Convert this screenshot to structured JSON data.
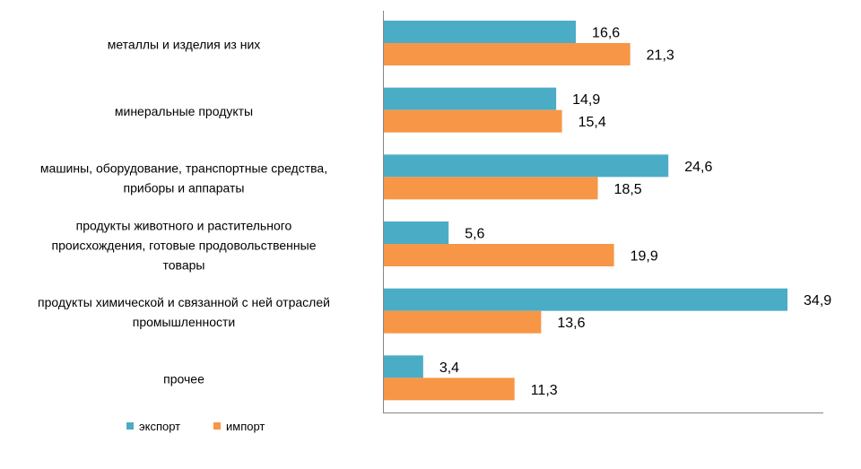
{
  "chart_data": {
    "type": "bar",
    "orientation": "horizontal",
    "categories": [
      [
        "металлы и изделия из них"
      ],
      [
        "минеральные продукты"
      ],
      [
        "машины, оборудование, транспортные средства,",
        "приборы и аппараты"
      ],
      [
        "продукты животного и растительного",
        "происхождения, готовые продовольственные",
        "товары"
      ],
      [
        "продукты химической и связанной с ней отраслей",
        "промышленности"
      ],
      [
        "прочее"
      ]
    ],
    "series": [
      {
        "name": "экспорт",
        "color": "#4BACC6",
        "values": [
          16.6,
          14.9,
          24.6,
          5.6,
          34.9,
          3.4
        ]
      },
      {
        "name": "импорт",
        "color": "#F79646",
        "values": [
          21.3,
          15.4,
          18.5,
          19.9,
          13.6,
          11.3
        ]
      }
    ],
    "xlim": [
      0,
      38
    ],
    "decimal_separator": ",",
    "grid": false,
    "legend_position": "bottom-left"
  }
}
